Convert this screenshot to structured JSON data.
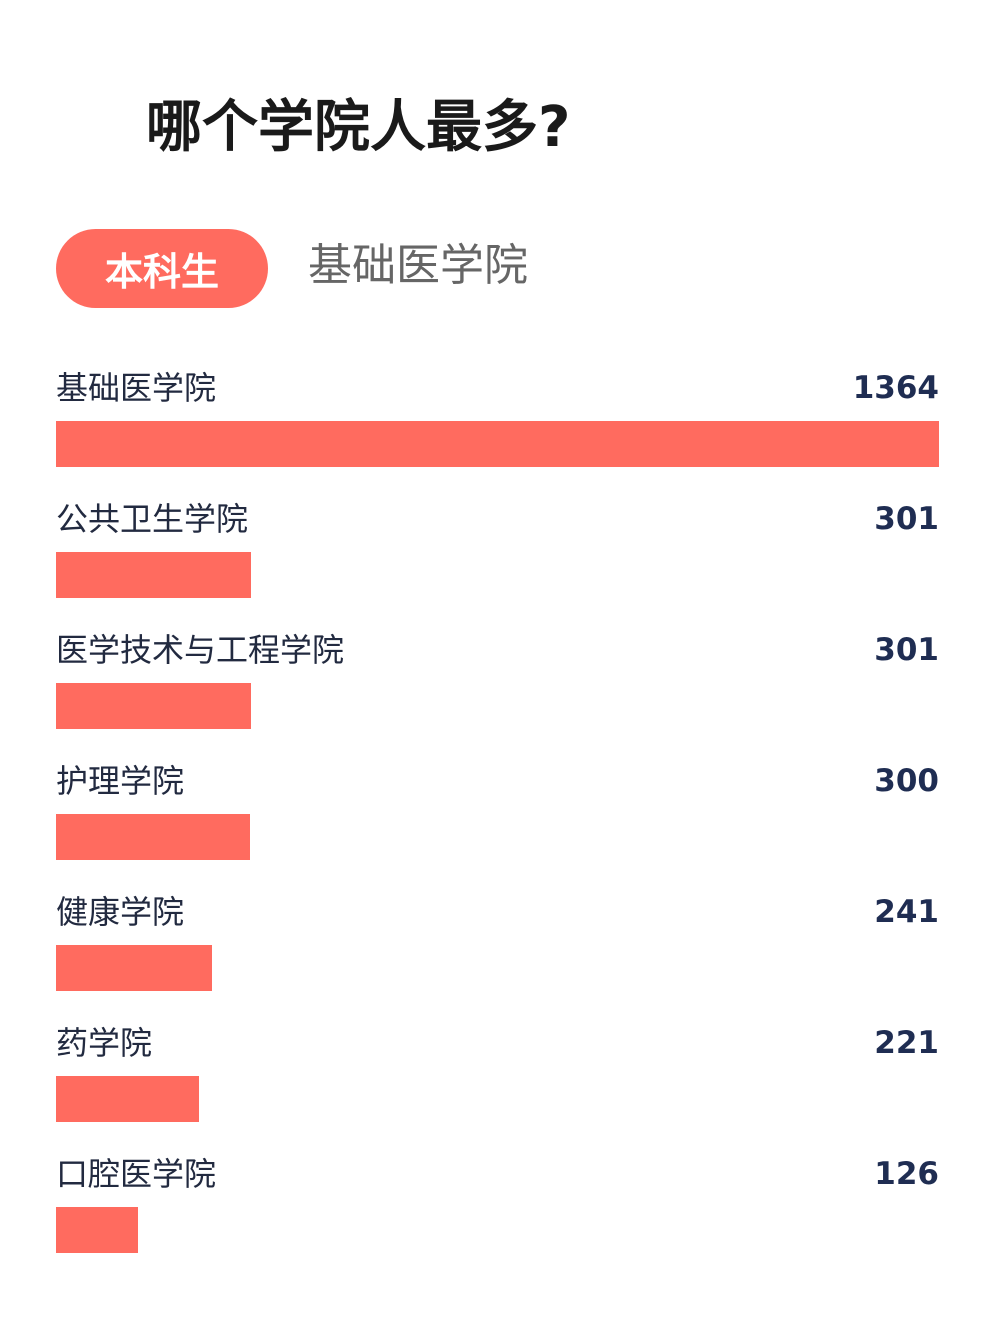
{
  "title": "哪个学院人最多?",
  "filter": {
    "selected_label": "本科生",
    "school_label": "基础医学院"
  },
  "colors": {
    "bar": "#ff6b5f",
    "label": "#222a40",
    "value": "#1f2d52"
  },
  "chart_data": {
    "type": "bar",
    "orientation": "horizontal",
    "title": "",
    "xlabel": "",
    "ylabel": "",
    "categories": [
      "基础医学院",
      "公共卫生学院",
      "医学技术与工程学院",
      "护理学院",
      "健康学院",
      "药学院",
      "口腔医学院"
    ],
    "values": [
      1364,
      301,
      301,
      300,
      241,
      221,
      126
    ],
    "xlim": [
      0,
      1364
    ],
    "grid": false,
    "legend": "none"
  }
}
